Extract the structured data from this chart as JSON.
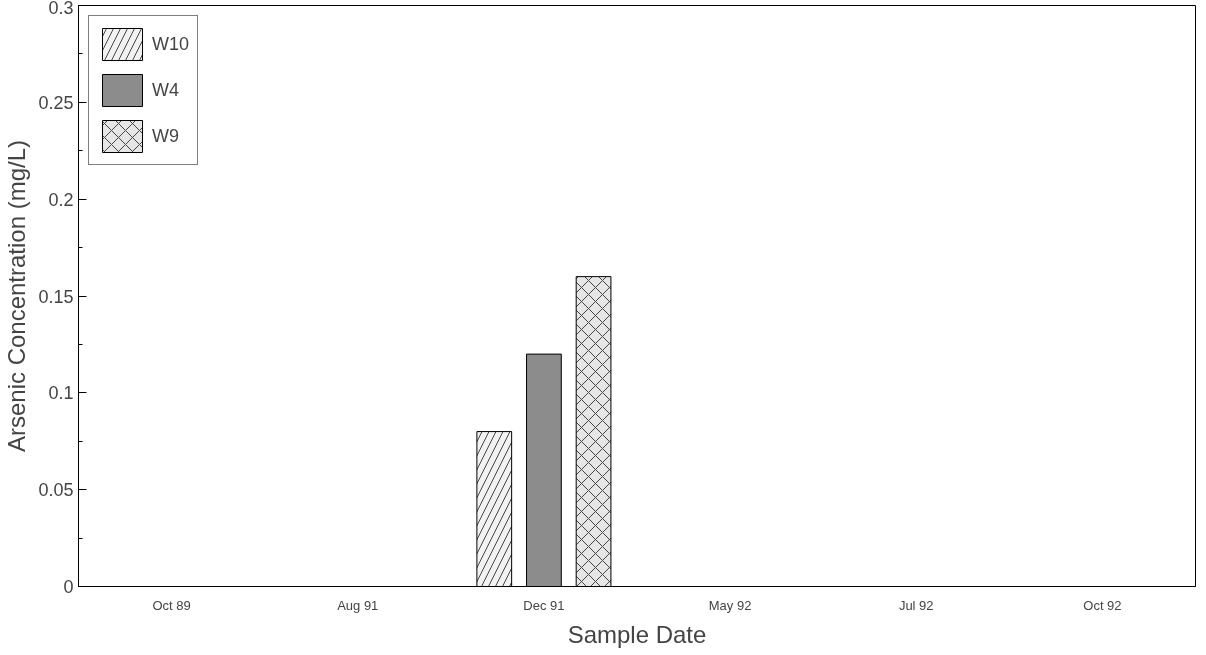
{
  "chart_data": {
    "type": "bar",
    "xlabel": "Sample Date",
    "ylabel": "Arsenic Concentration (mg/L)",
    "categories": [
      "Oct 89",
      "Aug 91",
      "Dec 91",
      "May 92",
      "Jul 92",
      "Oct 92"
    ],
    "series": [
      {
        "name": "W10",
        "color": "#f2f2f2",
        "values": [
          null,
          null,
          0.08,
          null,
          null,
          null
        ]
      },
      {
        "name": "W4",
        "color": "#8c8c8c",
        "values": [
          null,
          null,
          0.12,
          null,
          null,
          null
        ]
      },
      {
        "name": "W9",
        "color": "#e6e6e6",
        "values": [
          null,
          null,
          0.16,
          null,
          null,
          null
        ]
      }
    ],
    "ylim": [
      0,
      0.3
    ],
    "yticks": [
      0,
      0.05,
      0.1,
      0.15,
      0.2,
      0.25,
      0.3
    ],
    "grid": false,
    "legend": "top left"
  }
}
